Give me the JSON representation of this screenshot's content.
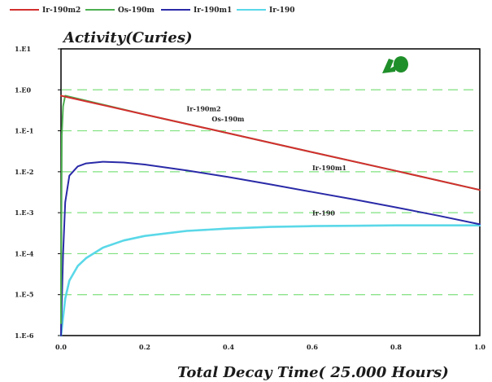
{
  "chart_data": {
    "type": "line",
    "title": "Activity(Curies)",
    "xlabel": "Total Decay Time( 25.000 Hours)",
    "ylabel": "",
    "y_scale": "log",
    "xlim": [
      0.0,
      1.0
    ],
    "ylim": [
      1e-06,
      10
    ],
    "grid": "horizontal dashed",
    "legend_placement": "top",
    "x_ticks": [
      "0.0",
      "0.2",
      "0.4",
      "0.6",
      "0.8",
      "1.0"
    ],
    "y_ticks": [
      "1.E1",
      "1.E0",
      "1.E-1",
      "1.E-2",
      "1.E-3",
      "1.E-4",
      "1.E-5",
      "1.E-6"
    ],
    "legend": [
      "Ir-190m2",
      "Os-190m",
      "Ir-190m1",
      "Ir-190"
    ],
    "series": [
      {
        "name": "Ir-190m2",
        "color": "#d32f2f",
        "x": [
          0.0,
          0.2,
          0.4,
          0.6,
          0.8,
          1.0
        ],
        "y": [
          0.72,
          0.25,
          0.087,
          0.03,
          0.0105,
          0.0036
        ]
      },
      {
        "name": "Os-190m",
        "color": "#4caf50",
        "x": [
          0.0,
          0.002,
          0.005,
          0.01,
          0.2,
          0.4,
          0.6,
          0.8,
          1.0
        ],
        "y": [
          2e-06,
          0.08,
          0.4,
          0.72,
          0.25,
          0.087,
          0.03,
          0.0105,
          0.0036
        ]
      },
      {
        "name": "Ir-190m1",
        "color": "#2a2aa8",
        "x": [
          0.0,
          0.005,
          0.01,
          0.02,
          0.04,
          0.06,
          0.1,
          0.15,
          0.2,
          0.3,
          0.4,
          0.5,
          0.6,
          0.7,
          0.8,
          0.9,
          1.0
        ],
        "y": [
          1e-06,
          0.0001,
          0.0018,
          0.008,
          0.0135,
          0.016,
          0.0175,
          0.0168,
          0.015,
          0.0108,
          0.0074,
          0.0049,
          0.0032,
          0.0021,
          0.00135,
          0.00085,
          0.00052
        ]
      },
      {
        "name": "Ir-190",
        "color": "#5ad8e8",
        "x": [
          0.0,
          0.01,
          0.02,
          0.04,
          0.06,
          0.1,
          0.15,
          0.2,
          0.3,
          0.4,
          0.5,
          0.6,
          0.7,
          0.8,
          0.9,
          1.0
        ],
        "y": [
          1e-06,
          8e-06,
          2.2e-05,
          5e-05,
          7.8e-05,
          0.00014,
          0.00021,
          0.00027,
          0.00036,
          0.00041,
          0.00045,
          0.00047,
          0.00048,
          0.00049,
          0.00049,
          0.00049
        ]
      }
    ],
    "annotations": [
      {
        "text": "Ir-190m2",
        "series": "Ir-190m2",
        "x": 0.3,
        "y": 0.3
      },
      {
        "text": "Os-190m",
        "series": "Os-190m",
        "x": 0.36,
        "y": 0.17
      },
      {
        "text": "Ir-190m1",
        "series": "Ir-190m1",
        "x": 0.6,
        "y": 0.011
      },
      {
        "text": "Ir-190",
        "series": "Ir-190",
        "x": 0.6,
        "y": 0.00085
      }
    ]
  }
}
